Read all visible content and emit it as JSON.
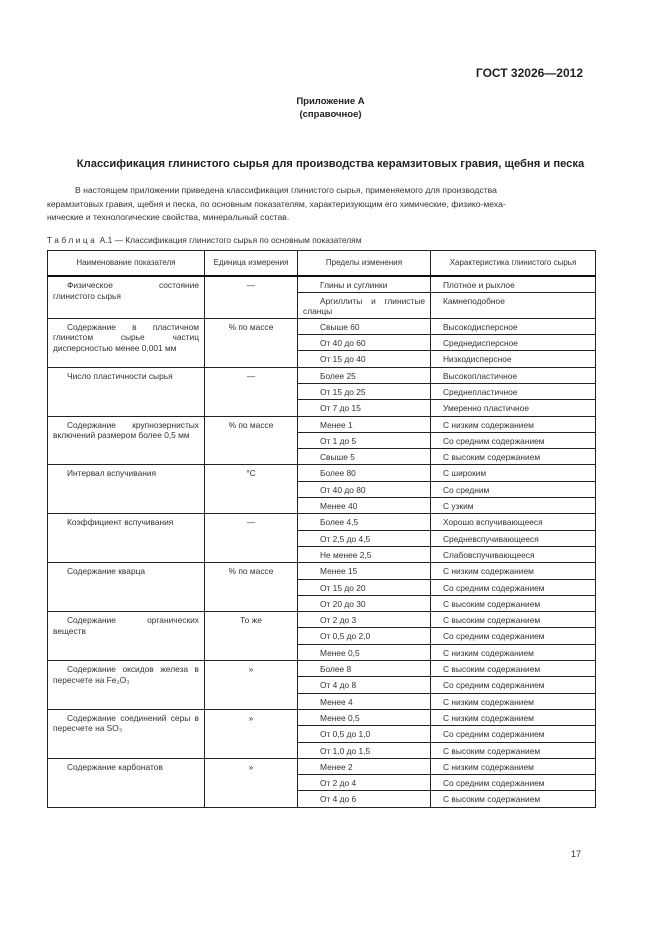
{
  "header": {
    "standard": "ГОСТ 32026—2012"
  },
  "annex": {
    "title": "Приложение А",
    "note": "(справочное)"
  },
  "title": "Классификация глинистого сырья для производства керамзитовых гравия, щебня и песка",
  "intro": [
    "В настоящем приложении приведена классификация глинистого сырья, применяемого для производства",
    "керамзитовых гравия, щебня и песка, по основным показателям, характеризующим его химические, физико-меха-",
    "нические и технологические свойства, минеральный состав."
  ],
  "table": {
    "caption_label": "Таблица",
    "caption_text": " А.1 — Классификация глинистого сырья по основным показателям",
    "columns": [
      "Наименование показателя",
      "Единица измерения",
      "Пределы изменения",
      "Характеристика глинистого сырья"
    ],
    "groups": [
      {
        "name": "Физическое состояние глинистого сырья",
        "unit": "—",
        "rows": [
          [
            "Глины и суглинки",
            "Плотное и рыхлое"
          ],
          [
            "Аргиллиты и глинистые сланцы",
            "Камнеподобное"
          ]
        ]
      },
      {
        "name": "Содержание в пластичном глинистом сырье частиц дисперсностью менее 0,001 мм",
        "unit": "% по массе",
        "rows": [
          [
            "Свыше 60",
            "Высокодисперсное"
          ],
          [
            "От 40 до 60",
            "Среднедисперсное"
          ],
          [
            "От 15 до 40",
            "Низкодисперсное"
          ]
        ]
      },
      {
        "name": "Число пластичности сырья",
        "unit": "—",
        "rows": [
          [
            "Более 25",
            "Высокопластичное"
          ],
          [
            "От 15 до 25",
            "Среднепластичное"
          ],
          [
            "От 7 до 15",
            "Умеренно пластичное"
          ]
        ]
      },
      {
        "name": "Содержание крупнозернистых включений размером более 0,5 мм",
        "unit": "% по массе",
        "rows": [
          [
            "Менее 1",
            "С низким содержанием"
          ],
          [
            "От 1 до 5",
            "Со средним содержанием"
          ],
          [
            "Свыше 5",
            "С высоким содержанием"
          ]
        ]
      },
      {
        "name": "Интервал вспучивания",
        "unit": "°С",
        "rows": [
          [
            "Более 80",
            "С широким"
          ],
          [
            "От 40 до 80",
            "Со средним"
          ],
          [
            "Менее 40",
            "С узким"
          ]
        ]
      },
      {
        "name": "Коэффициент вспучивания",
        "unit": "—",
        "rows": [
          [
            "Более 4,5",
            "Хорошо вспучивающееся"
          ],
          [
            "От 2,5 до 4,5",
            "Средневспучивающееся"
          ],
          [
            "Не менее 2,5",
            "Слабовспучивающееся"
          ]
        ]
      },
      {
        "name": "Содержание кварца",
        "unit": "% по массе",
        "rows": [
          [
            "Менее 15",
            "С низким содержанием"
          ],
          [
            "От 15 до 20",
            "Со средним содержанием"
          ],
          [
            "От 20 до 30",
            "С высоким содержанием"
          ]
        ]
      },
      {
        "name": "Содержание органических веществ",
        "unit": "То же",
        "rows": [
          [
            "От 2 до 3",
            "С высоким содержанием"
          ],
          [
            "От 0,5 до 2,0",
            "Со средним содержанием"
          ],
          [
            "Менее 0,5",
            "С низким содержанием"
          ]
        ]
      },
      {
        "name": "Содержание оксидов железа в пересчете на Fe₂O₃",
        "unit": "»",
        "rows": [
          [
            "Более 8",
            "С высоким содержанием"
          ],
          [
            "От 4 до 8",
            "Со средним содержанием"
          ],
          [
            "Менее 4",
            "С низким содержанием"
          ]
        ]
      },
      {
        "name": "Содержание соединений серы в пересчете на SO₃",
        "unit": "»",
        "rows": [
          [
            "Менее 0,5",
            "С низким содержанием"
          ],
          [
            "От 0,5 до 1,0",
            "Со средним содержанием"
          ],
          [
            "От 1,0 до 1,5",
            "С высоким содержанием"
          ]
        ]
      },
      {
        "name": "Содержание карбонатов",
        "unit": "»",
        "rows": [
          [
            "Менее 2",
            "С низким содержанием"
          ],
          [
            "От 2 до 4",
            "Со средним содержанием"
          ],
          [
            "От 4 до 6",
            "С высоким содержанием"
          ]
        ]
      }
    ]
  },
  "page_number": "17"
}
